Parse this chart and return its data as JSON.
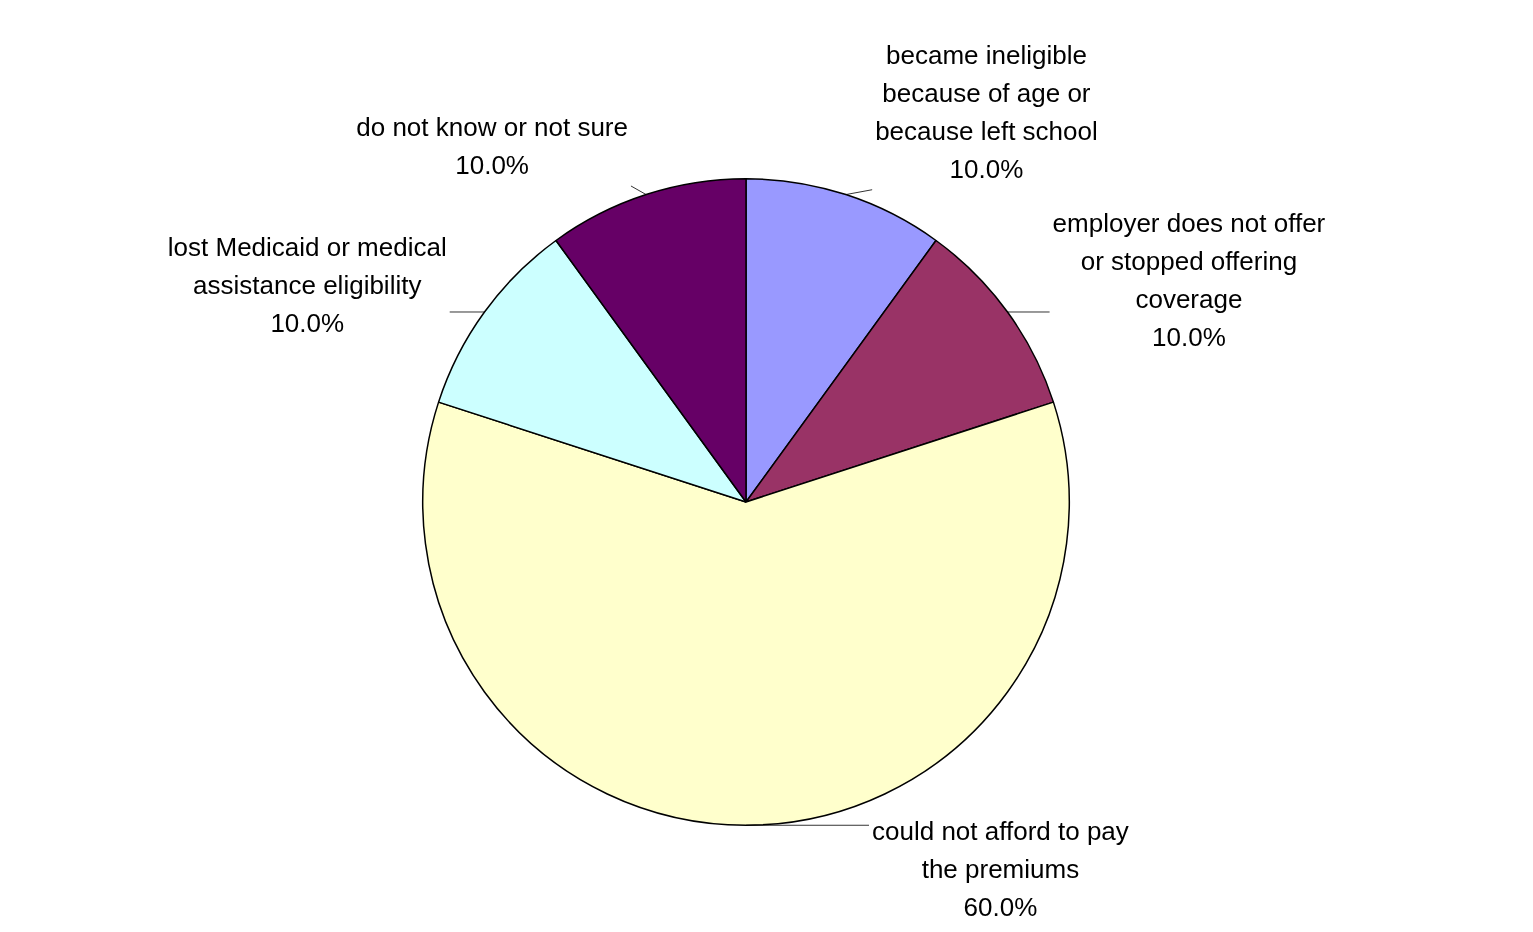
{
  "chart_data": {
    "type": "pie",
    "categories": [
      "became ineligible\nbecause of age or\nbecause left school",
      "employer does not offer\nor stopped offering\ncoverage",
      "could not afford to pay\nthe premiums",
      "lost Medicaid or medical\nassistance eligibility",
      "do not know or not sure"
    ],
    "values": [
      10,
      10,
      60,
      10,
      10
    ],
    "colors": [
      "#9999ff",
      "#993366",
      "#ffffcc",
      "#ccffff",
      "#660066"
    ],
    "value_labels": [
      "10.0%",
      "10.0%",
      "60.0%",
      "10.0%",
      "10.0%"
    ]
  }
}
